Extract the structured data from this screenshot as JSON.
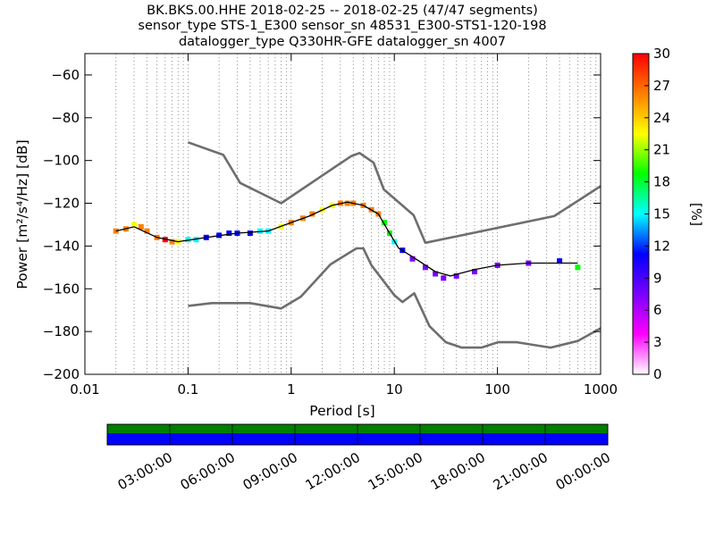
{
  "title": {
    "line1": "BK.BKS.00.HHE   2018-02-25 -- 2018-02-25  (47/47 segments)",
    "line2": "sensor_type STS-1_E300 sensor_sn 48531_E300-STS1-120-198",
    "line3": "datalogger_type Q330HR-GFE datalogger_sn 4007"
  },
  "chart_data": {
    "type": "heatmap",
    "xlabel": "Period [s]",
    "ylabel_prefix": "Power",
    "ylabel_unit": "[m²/s⁴/Hz] [dB]",
    "xscale": "log",
    "xlim": [
      0.01,
      1000
    ],
    "ylim": [
      -200,
      -50
    ],
    "x_ticks": [
      {
        "value": 0.01,
        "label": "0.01"
      },
      {
        "value": 0.1,
        "label": "0.1"
      },
      {
        "value": 1,
        "label": "1"
      },
      {
        "value": 10,
        "label": "10"
      },
      {
        "value": 100,
        "label": "100"
      },
      {
        "value": 1000,
        "label": "1000"
      }
    ],
    "y_ticks": [
      {
        "value": -60,
        "label": "−60"
      },
      {
        "value": -80,
        "label": "−80"
      },
      {
        "value": -100,
        "label": "−100"
      },
      {
        "value": -120,
        "label": "−120"
      },
      {
        "value": -140,
        "label": "−140"
      },
      {
        "value": -160,
        "label": "−160"
      },
      {
        "value": -180,
        "label": "−180"
      },
      {
        "value": -200,
        "label": "−200"
      }
    ],
    "grid": "dotted vertical lines at period bins",
    "colorbar": {
      "label": "[%]",
      "min": 0,
      "max": 30,
      "ticks": [
        "30",
        "27",
        "24",
        "21",
        "18",
        "15",
        "12",
        "9",
        "6",
        "3",
        "0"
      ],
      "colormap": [
        "#ffffff",
        "#ff00ff",
        "#7a00ff",
        "#0000ff",
        "#00ffff",
        "#00ff00",
        "#ffff00",
        "#ff7f00",
        "#ff0000"
      ]
    },
    "noise_models": {
      "color": "#6e6e6e",
      "high_noise_model": [
        {
          "period": 0.1,
          "db": -91.5
        },
        {
          "period": 0.22,
          "db": -97.4
        },
        {
          "period": 0.32,
          "db": -110.5
        },
        {
          "period": 0.8,
          "db": -120
        },
        {
          "period": 3.8,
          "db": -98
        },
        {
          "period": 4.6,
          "db": -96.5
        },
        {
          "period": 6.3,
          "db": -101
        },
        {
          "period": 7.9,
          "db": -113.5
        },
        {
          "period": 15.4,
          "db": -125.6
        },
        {
          "period": 20,
          "db": -138.5
        },
        {
          "period": 354.8,
          "db": -126
        },
        {
          "period": 1000,
          "db": -112
        }
      ],
      "low_noise_model": [
        {
          "period": 0.1,
          "db": -168
        },
        {
          "period": 0.17,
          "db": -166.7
        },
        {
          "period": 0.4,
          "db": -166.7
        },
        {
          "period": 0.8,
          "db": -169.2
        },
        {
          "period": 1.24,
          "db": -163.7
        },
        {
          "period": 2.4,
          "db": -148.6
        },
        {
          "period": 4.3,
          "db": -141.1
        },
        {
          "period": 5,
          "db": -141.1
        },
        {
          "period": 6,
          "db": -149
        },
        {
          "period": 10,
          "db": -163
        },
        {
          "period": 12,
          "db": -166.2
        },
        {
          "period": 15.6,
          "db": -162.1
        },
        {
          "period": 21.9,
          "db": -177.5
        },
        {
          "period": 31.6,
          "db": -185
        },
        {
          "period": 45,
          "db": -187.5
        },
        {
          "period": 70,
          "db": -187.5
        },
        {
          "period": 101,
          "db": -185
        },
        {
          "period": 154,
          "db": -185
        },
        {
          "period": 328,
          "db": -187.5
        },
        {
          "period": 600,
          "db": -184.4
        },
        {
          "period": 1000,
          "db": -178.5
        }
      ]
    },
    "mean_curve": {
      "color": "#000000",
      "points": [
        {
          "period": 0.02,
          "db": -133
        },
        {
          "period": 0.03,
          "db": -131
        },
        {
          "period": 0.05,
          "db": -136
        },
        {
          "period": 0.08,
          "db": -138
        },
        {
          "period": 0.15,
          "db": -136
        },
        {
          "period": 0.3,
          "db": -134
        },
        {
          "period": 0.6,
          "db": -133
        },
        {
          "period": 1,
          "db": -129
        },
        {
          "period": 1.5,
          "db": -126
        },
        {
          "period": 2.5,
          "db": -121
        },
        {
          "period": 3.5,
          "db": -119.5
        },
        {
          "period": 5,
          "db": -121
        },
        {
          "period": 7,
          "db": -125
        },
        {
          "period": 9,
          "db": -134
        },
        {
          "period": 11,
          "db": -141
        },
        {
          "period": 15,
          "db": -145
        },
        {
          "period": 25,
          "db": -152
        },
        {
          "period": 35,
          "db": -154
        },
        {
          "period": 60,
          "db": -151
        },
        {
          "period": 100,
          "db": -149
        },
        {
          "period": 200,
          "db": -148
        },
        {
          "period": 400,
          "db": -148
        },
        {
          "period": 600,
          "db": -148
        }
      ]
    },
    "density_cells": [
      {
        "period": 0.02,
        "db": -133,
        "pct": 28
      },
      {
        "period": 0.025,
        "db": -132,
        "pct": 25
      },
      {
        "period": 0.03,
        "db": -130,
        "pct": 22
      },
      {
        "period": 0.035,
        "db": -131,
        "pct": 26
      },
      {
        "period": 0.04,
        "db": -133,
        "pct": 27
      },
      {
        "period": 0.05,
        "db": -136,
        "pct": 28
      },
      {
        "period": 0.06,
        "db": -137,
        "pct": 29
      },
      {
        "period": 0.07,
        "db": -138,
        "pct": 27
      },
      {
        "period": 0.08,
        "db": -138,
        "pct": 22
      },
      {
        "period": 0.1,
        "db": -137,
        "pct": 16
      },
      {
        "period": 0.12,
        "db": -137,
        "pct": 14
      },
      {
        "period": 0.15,
        "db": -136,
        "pct": 13
      },
      {
        "period": 0.2,
        "db": -135,
        "pct": 13
      },
      {
        "period": 0.25,
        "db": -134,
        "pct": 12
      },
      {
        "period": 0.3,
        "db": -134,
        "pct": 13
      },
      {
        "period": 0.4,
        "db": -134,
        "pct": 12
      },
      {
        "period": 0.5,
        "db": -133,
        "pct": 14
      },
      {
        "period": 0.6,
        "db": -133,
        "pct": 15
      },
      {
        "period": 0.8,
        "db": -131,
        "pct": 24
      },
      {
        "period": 1,
        "db": -129,
        "pct": 26
      },
      {
        "period": 1.3,
        "db": -127,
        "pct": 25
      },
      {
        "period": 1.6,
        "db": -125,
        "pct": 26
      },
      {
        "period": 2,
        "db": -123,
        "pct": 24
      },
      {
        "period": 2.5,
        "db": -121,
        "pct": 23
      },
      {
        "period": 3,
        "db": -120,
        "pct": 25
      },
      {
        "period": 3.5,
        "db": -120,
        "pct": 27
      },
      {
        "period": 4,
        "db": -120,
        "pct": 28
      },
      {
        "period": 5,
        "db": -121,
        "pct": 27
      },
      {
        "period": 6,
        "db": -123,
        "pct": 26
      },
      {
        "period": 7,
        "db": -125,
        "pct": 25
      },
      {
        "period": 8,
        "db": -129,
        "pct": 20
      },
      {
        "period": 9,
        "db": -134,
        "pct": 17
      },
      {
        "period": 10,
        "db": -138,
        "pct": 14
      },
      {
        "period": 12,
        "db": -142,
        "pct": 12
      },
      {
        "period": 15,
        "db": -146,
        "pct": 8
      },
      {
        "period": 20,
        "db": -150,
        "pct": 7
      },
      {
        "period": 25,
        "db": -153,
        "pct": 6
      },
      {
        "period": 30,
        "db": -155,
        "pct": 6
      },
      {
        "period": 40,
        "db": -154,
        "pct": 6
      },
      {
        "period": 60,
        "db": -152,
        "pct": 6
      },
      {
        "period": 100,
        "db": -149,
        "pct": 7
      },
      {
        "period": 200,
        "db": -148,
        "pct": 8
      },
      {
        "period": 400,
        "db": -147,
        "pct": 12
      },
      {
        "period": 600,
        "db": -150,
        "pct": 17
      }
    ]
  },
  "timeline": {
    "bar_colors": [
      "#007f00",
      "#0000ff"
    ],
    "tick_labels": [
      "03:00:00",
      "06:00:00",
      "09:00:00",
      "12:00:00",
      "15:00:00",
      "18:00:00",
      "21:00:00",
      "00:00:00"
    ]
  }
}
